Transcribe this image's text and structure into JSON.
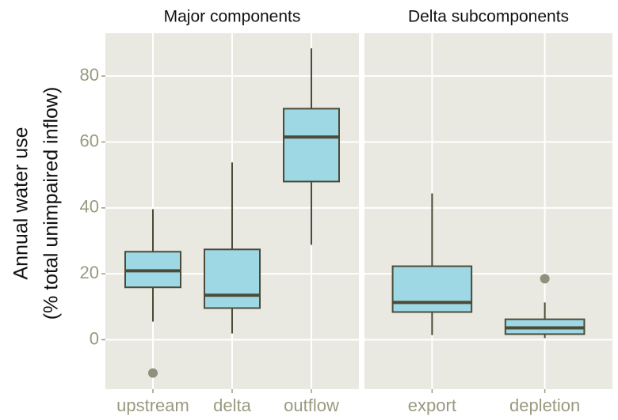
{
  "chart_data": {
    "type": "box",
    "ylabel": [
      "Annual water use",
      "(% total unimpaired inflow)"
    ],
    "ylim": [
      -15,
      93
    ],
    "yticks": [
      0,
      20,
      40,
      60,
      80
    ],
    "grid": true,
    "box_color": "#9fd8e5",
    "line_color": "#4b4b38",
    "outlier_color": "#8e927c",
    "facets": [
      {
        "title": "Major components",
        "categories": [
          "upstream",
          "delta",
          "outflow"
        ],
        "min": [
          5.5,
          1.9,
          28.8
        ],
        "q1": [
          15.9,
          9.6,
          48.0
        ],
        "median": [
          20.9,
          13.5,
          61.5
        ],
        "q3": [
          26.7,
          27.4,
          70.1
        ],
        "max": [
          39.6,
          53.8,
          88.4
        ],
        "outliers": [
          [
            -10.1
          ],
          [],
          []
        ]
      },
      {
        "title": "Delta subcomponents",
        "categories": [
          "export",
          "depletion"
        ],
        "min": [
          1.4,
          0.5
        ],
        "q1": [
          8.4,
          1.7
        ],
        "median": [
          11.3,
          3.6
        ],
        "q3": [
          22.3,
          6.2
        ],
        "max": [
          44.4,
          11.3
        ],
        "outliers": [
          [],
          [
            18.5
          ]
        ]
      }
    ]
  }
}
